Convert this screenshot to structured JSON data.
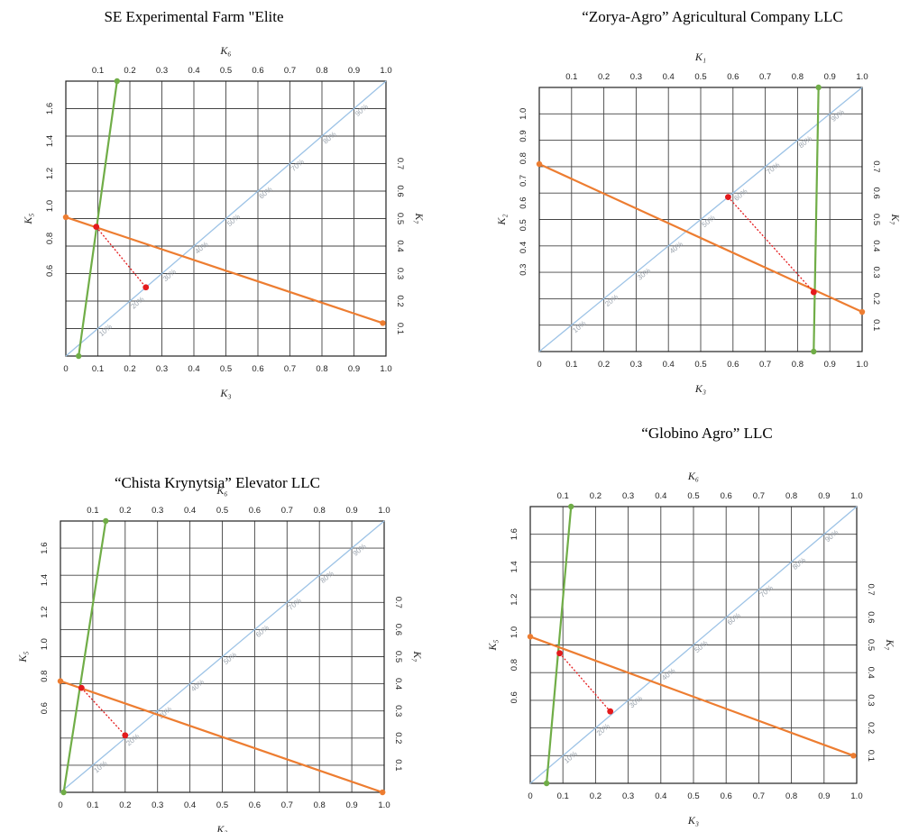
{
  "chart_data": [
    {
      "type": "line",
      "title": "SE Experimental Farm \"Elite",
      "xlabel_bottom": "K₃",
      "xlabel_top": "K₆",
      "ylabel_left": "K₅",
      "ylabel_right": "K₇",
      "bottom_ticks": [
        "0",
        "0.1",
        "0.2",
        "0.3",
        "0.4",
        "0.5",
        "0.6",
        "0.7",
        "0.8",
        "0.9",
        "1.0"
      ],
      "top_ticks": [
        "0.1",
        "0.2",
        "0.3",
        "0.4",
        "0.5",
        "0.6",
        "0.7",
        "0.8",
        "0.9",
        "1.0"
      ],
      "left_ticks": [
        "0.6",
        "0.8",
        "1.0",
        "1.2",
        "1.4",
        "1.6"
      ],
      "right_ticks": [
        "0.1",
        "0.2",
        "0.3",
        "0.4",
        "0.5",
        "0.6",
        "0.7"
      ],
      "diagonal_labels": [
        "10%",
        "20%",
        "30%",
        "40%",
        "50%",
        "60%",
        "70%",
        "80%",
        "90%"
      ],
      "xlim": [
        0,
        1
      ],
      "green_line": [
        [
          0.04,
          0.0
        ],
        [
          0.16,
          1.0
        ]
      ],
      "orange_line": [
        [
          0.0,
          0.505
        ],
        [
          0.99,
          0.12
        ]
      ],
      "red_segment": [
        [
          0.095,
          0.47
        ],
        [
          0.25,
          0.25
        ]
      ],
      "grid": true
    },
    {
      "type": "line",
      "title": "“Zorya-Agro” Agricultural Company LLC",
      "xlabel_bottom": "K₃",
      "xlabel_top": "K₁",
      "ylabel_left": "K₂",
      "ylabel_right": "K₇",
      "bottom_ticks": [
        "0",
        "0.1",
        "0.2",
        "0.3",
        "0.4",
        "0.5",
        "0.6",
        "0.7",
        "0.8",
        "0.9",
        "1.0"
      ],
      "top_ticks": [
        "0.1",
        "0.2",
        "0.3",
        "0.4",
        "0.5",
        "0.6",
        "0.7",
        "0.8",
        "0.9",
        "1.0"
      ],
      "left_ticks": [
        "0.3",
        "0.4",
        "0.5",
        "0.6",
        "0.7",
        "0.8",
        "0.9",
        "1.0"
      ],
      "right_ticks": [
        "0.1",
        "0.2",
        "0.3",
        "0.4",
        "0.5",
        "0.6",
        "0.7"
      ],
      "diagonal_labels": [
        "10%",
        "20%",
        "30%",
        "40%",
        "50%",
        "60%",
        "70%",
        "80%",
        "90%"
      ],
      "xlim": [
        0,
        1
      ],
      "green_line": [
        [
          0.85,
          0.0
        ],
        [
          0.865,
          1.0
        ]
      ],
      "orange_line": [
        [
          0.0,
          0.71
        ],
        [
          1.0,
          0.15
        ]
      ],
      "red_segment": [
        [
          0.585,
          0.585
        ],
        [
          0.85,
          0.225
        ]
      ],
      "grid": true
    },
    {
      "type": "line",
      "title": "“Chista Krynytsia” Elevator LLC",
      "xlabel_bottom": "K₃",
      "xlabel_top": "K₆",
      "ylabel_left": "K₅",
      "ylabel_right": "K₇",
      "bottom_ticks": [
        "0",
        "0.1",
        "0.2",
        "0.3",
        "0.4",
        "0.5",
        "0.6",
        "0.7",
        "0.8",
        "0.9",
        "1.0"
      ],
      "top_ticks": [
        "0.1",
        "0.2",
        "0.3",
        "0.4",
        "0.5",
        "0.6",
        "0.7",
        "0.8",
        "0.9",
        "1.0"
      ],
      "left_ticks": [
        "0.6",
        "0.8",
        "1.0",
        "1.2",
        "1.4",
        "1.6"
      ],
      "right_ticks": [
        "0.1",
        "0.2",
        "0.3",
        "0.4",
        "0.5",
        "0.6",
        "0.7"
      ],
      "diagonal_labels": [
        "10%",
        "20%",
        "30%",
        "40%",
        "50%",
        "60%",
        "70%",
        "80%",
        "90%"
      ],
      "xlim": [
        0,
        1
      ],
      "green_line": [
        [
          0.01,
          0.0
        ],
        [
          0.14,
          1.0
        ]
      ],
      "orange_line": [
        [
          0.0,
          0.41
        ],
        [
          0.995,
          0.0
        ]
      ],
      "red_segment": [
        [
          0.065,
          0.385
        ],
        [
          0.2,
          0.21
        ]
      ],
      "grid": true
    },
    {
      "type": "line",
      "title": "“Globino Agro” LLC",
      "xlabel_bottom": "K₃",
      "xlabel_top": "K₆",
      "ylabel_left": "K₅",
      "ylabel_right": "K₇",
      "bottom_ticks": [
        "0",
        "0.1",
        "0.2",
        "0.3",
        "0.4",
        "0.5",
        "0.6",
        "0.7",
        "0.8",
        "0.9",
        "1.0"
      ],
      "top_ticks": [
        "0.1",
        "0.2",
        "0.3",
        "0.4",
        "0.5",
        "0.6",
        "0.7",
        "0.8",
        "0.9",
        "1.0"
      ],
      "left_ticks": [
        "0.6",
        "0.8",
        "1.0",
        "1.2",
        "1.4",
        "1.6"
      ],
      "right_ticks": [
        "0.1",
        "0.2",
        "0.3",
        "0.4",
        "0.5",
        "0.6",
        "0.7"
      ],
      "diagonal_labels": [
        "10%",
        "20%",
        "30%",
        "40%",
        "50%",
        "60%",
        "70%",
        "80%",
        "90%"
      ],
      "xlim": [
        0,
        1
      ],
      "green_line": [
        [
          0.05,
          0.0
        ],
        [
          0.125,
          1.0
        ]
      ],
      "orange_line": [
        [
          0.0,
          0.53
        ],
        [
          0.99,
          0.1
        ]
      ],
      "red_segment": [
        [
          0.09,
          0.47
        ],
        [
          0.245,
          0.26
        ]
      ],
      "grid": true
    }
  ],
  "colors": {
    "green": "#70ad47",
    "orange": "#ed7d31",
    "red": "#e41a1c",
    "diagonal": "#9dc3e6",
    "grid": "#444444"
  }
}
